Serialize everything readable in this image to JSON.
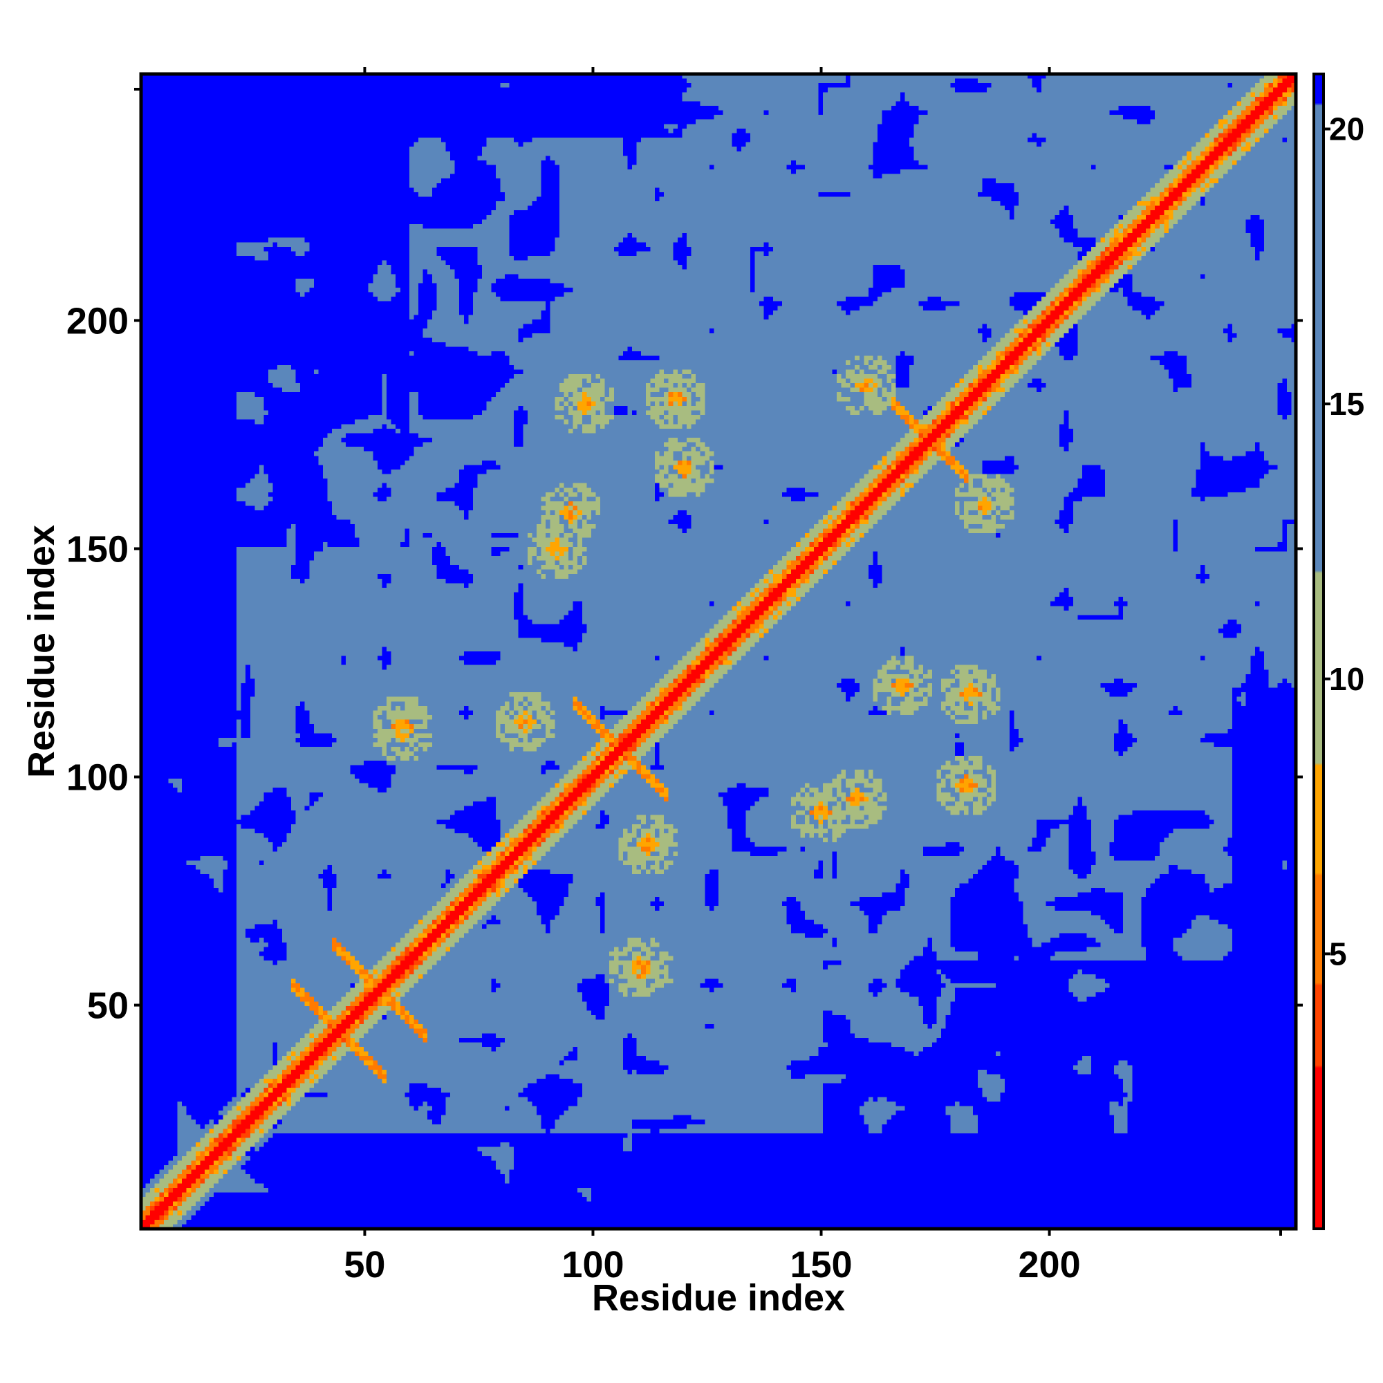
{
  "chart_data": {
    "type": "heatmap",
    "title": "",
    "xlabel": "Residue index",
    "ylabel": "Residue index",
    "xlim": [
      1,
      254
    ],
    "ylim": [
      1,
      254
    ],
    "x_ticks": [
      50,
      100,
      150,
      200
    ],
    "y_ticks": [
      50,
      100,
      150,
      200
    ],
    "colorbar": {
      "range": [
        0,
        21
      ],
      "ticks": [
        5,
        10,
        15,
        20
      ],
      "colors": [
        {
          "from": 0,
          "to": 3,
          "color": "#ff0000"
        },
        {
          "from": 3,
          "to": 4.5,
          "color": "#ff4400"
        },
        {
          "from": 4.5,
          "to": 6.5,
          "color": "#ff7a00"
        },
        {
          "from": 6.5,
          "to": 8.5,
          "color": "#ffa500"
        },
        {
          "from": 8.5,
          "to": 12,
          "color": "#a8bc80"
        },
        {
          "from": 12,
          "to": 20.5,
          "color": "#5b87bb"
        },
        {
          "from": 20.5,
          "to": 21,
          "color": "#0000ff"
        }
      ]
    },
    "cross_contacts": [
      {
        "center": [
          44,
          44
        ],
        "length": 10
      },
      {
        "center": [
          53,
          53
        ],
        "length": 10
      },
      {
        "center": [
          106,
          106
        ],
        "length": 10
      },
      {
        "center": [
          174,
          174
        ],
        "length": 8
      }
    ],
    "off_diagonal_contacts": [
      [
        58,
        111
      ],
      [
        111,
        58
      ],
      [
        120,
        168
      ],
      [
        168,
        120
      ],
      [
        118,
        183
      ],
      [
        183,
        118
      ],
      [
        98,
        182
      ],
      [
        182,
        98
      ],
      [
        110,
        58
      ],
      [
        58,
        110
      ],
      [
        95,
        158
      ],
      [
        158,
        95
      ],
      [
        186,
        160
      ],
      [
        160,
        186
      ],
      [
        85,
        112
      ],
      [
        112,
        85
      ],
      [
        92,
        150
      ],
      [
        150,
        92
      ]
    ]
  }
}
